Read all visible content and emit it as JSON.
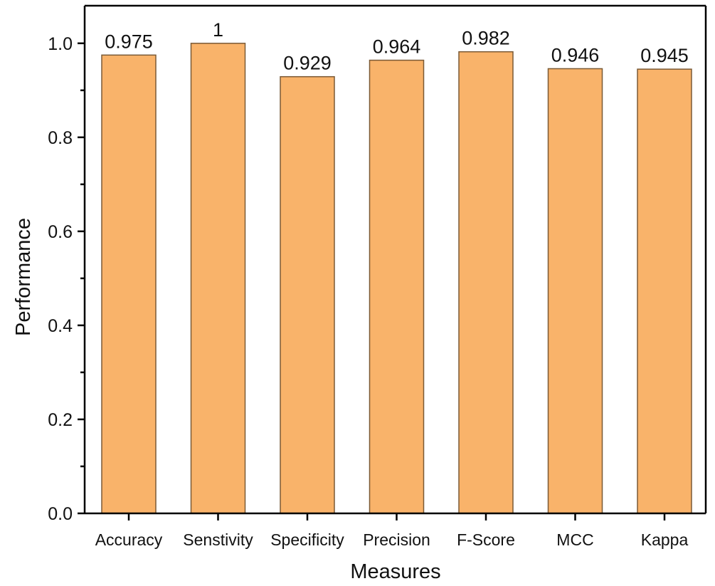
{
  "chart_data": {
    "type": "bar",
    "title": "",
    "xlabel": "Measures",
    "ylabel": "Performance",
    "categories": [
      "Accuracy",
      "Senstivity",
      "Specificity",
      "Precision",
      "F-Score",
      "MCC",
      "Kappa"
    ],
    "values": [
      0.975,
      1,
      0.929,
      0.964,
      0.982,
      0.946,
      0.945
    ],
    "value_labels": [
      "0.975",
      "1",
      "0.929",
      "0.964",
      "0.982",
      "0.946",
      "0.945"
    ],
    "ylim": [
      0,
      1.08
    ],
    "yticks": [
      0.0,
      0.2,
      0.4,
      0.6,
      0.8,
      1.0
    ],
    "ytick_labels": [
      "0.0",
      "0.2",
      "0.4",
      "0.6",
      "0.8",
      "1.0"
    ],
    "grid": false,
    "legend": "none",
    "colors": {
      "bar_fill": "#f9b36a",
      "bar_stroke": "#7a5a36",
      "axis": "#000000"
    }
  }
}
